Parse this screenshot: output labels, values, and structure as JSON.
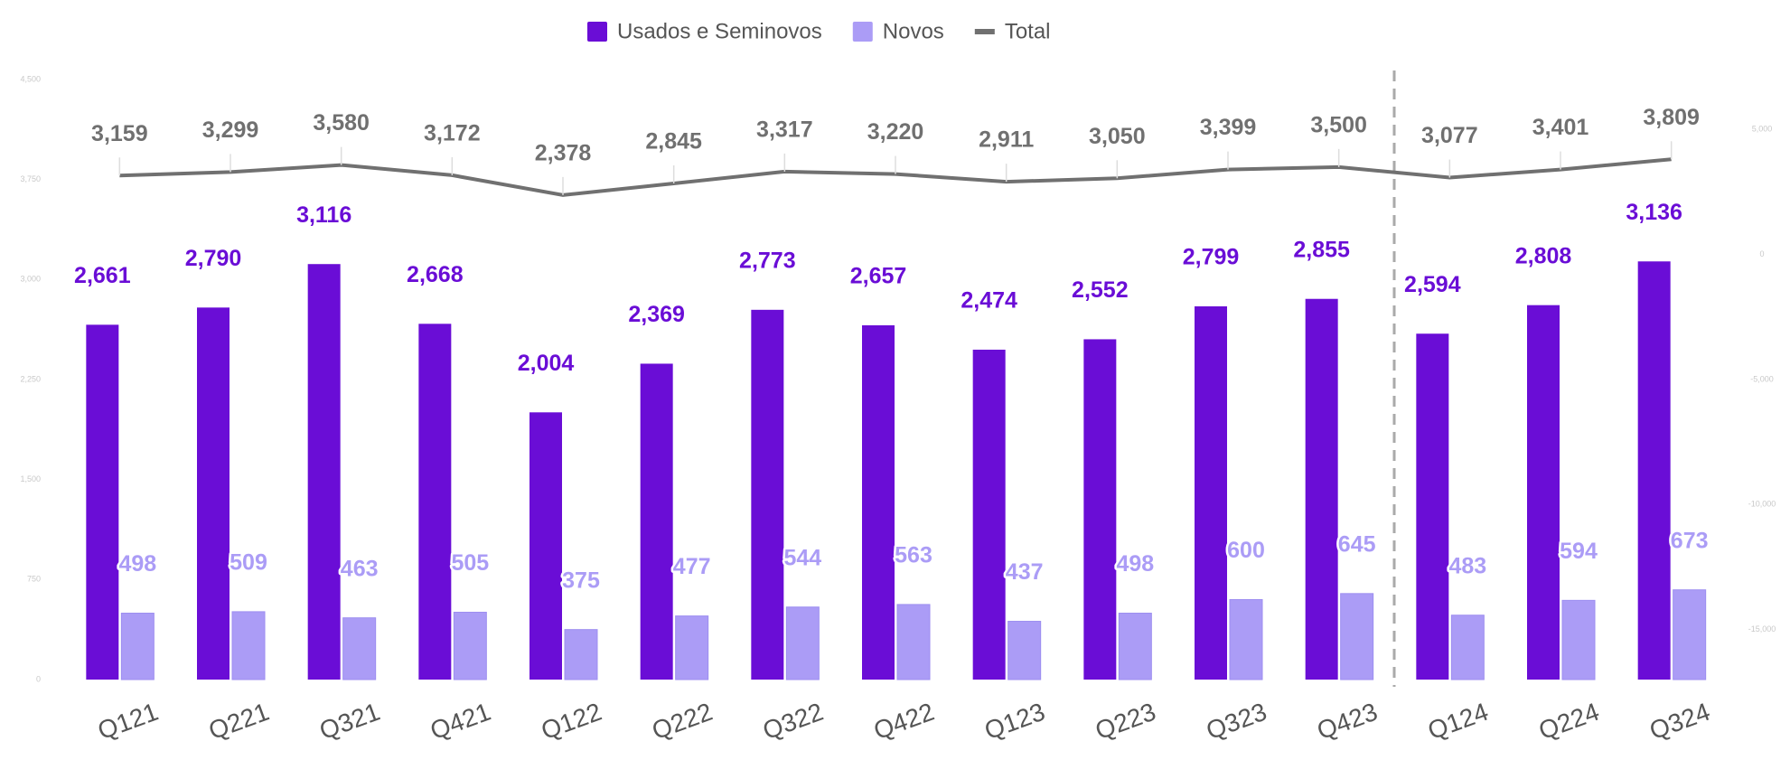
{
  "chart_data": {
    "type": "bar",
    "categories": [
      "Q121",
      "Q221",
      "Q321",
      "Q421",
      "Q122",
      "Q222",
      "Q322",
      "Q422",
      "Q123",
      "Q223",
      "Q323",
      "Q423",
      "Q124",
      "Q224",
      "Q324"
    ],
    "series": [
      {
        "name": "Usados e Seminovos",
        "color": "#6a0dd6",
        "values": [
          2661,
          2790,
          3116,
          2668,
          2004,
          2369,
          2773,
          2657,
          2474,
          2552,
          2799,
          2855,
          2594,
          2808,
          3136
        ],
        "value_labels": [
          "2,661",
          "2,790",
          "3,116",
          "2,668",
          "2,004",
          "2,369",
          "2,773",
          "2,657",
          "2,474",
          "2,552",
          "2,799",
          "2,855",
          "2,594",
          "2,808",
          "3,136"
        ]
      },
      {
        "name": "Novos",
        "color": "#ab9cf6",
        "values": [
          498,
          509,
          463,
          505,
          375,
          477,
          544,
          563,
          437,
          498,
          600,
          645,
          483,
          594,
          673
        ]
      },
      {
        "name": "Total",
        "type": "line",
        "axis": "y2",
        "color": "#707070",
        "values": [
          3159,
          3299,
          3580,
          3172,
          2378,
          2845,
          3317,
          3220,
          2911,
          3050,
          3399,
          3500,
          3077,
          3401,
          3809
        ],
        "value_labels": [
          "3,159",
          "3,299",
          "3,580",
          "3,172",
          "2,378",
          "2,845",
          "3,317",
          "3,220",
          "2,911",
          "3,050",
          "3,399",
          "3,500",
          "3,077",
          "3,401",
          "3,809"
        ]
      }
    ],
    "ylim": [
      0,
      4500
    ],
    "yticks": [
      0,
      750,
      {
        "value": 1500,
        "label": "1,500"
      },
      {
        "value": 2250,
        "label": "2,250"
      },
      {
        "value": 3000,
        "label": "3,000"
      },
      {
        "value": 3750,
        "label": "3,750"
      },
      {
        "value": 4500,
        "label": "4,500"
      }
    ],
    "y2lim": [
      -17000,
      7000
    ],
    "y2ticks": [
      {
        "value": -15000,
        "label": "-15,000"
      },
      {
        "value": -10000,
        "label": "-10,000"
      },
      {
        "value": -5000,
        "label": "-5,000"
      },
      0,
      {
        "value": 5000,
        "label": "5,000"
      }
    ],
    "legend": "top",
    "grid": false
  }
}
